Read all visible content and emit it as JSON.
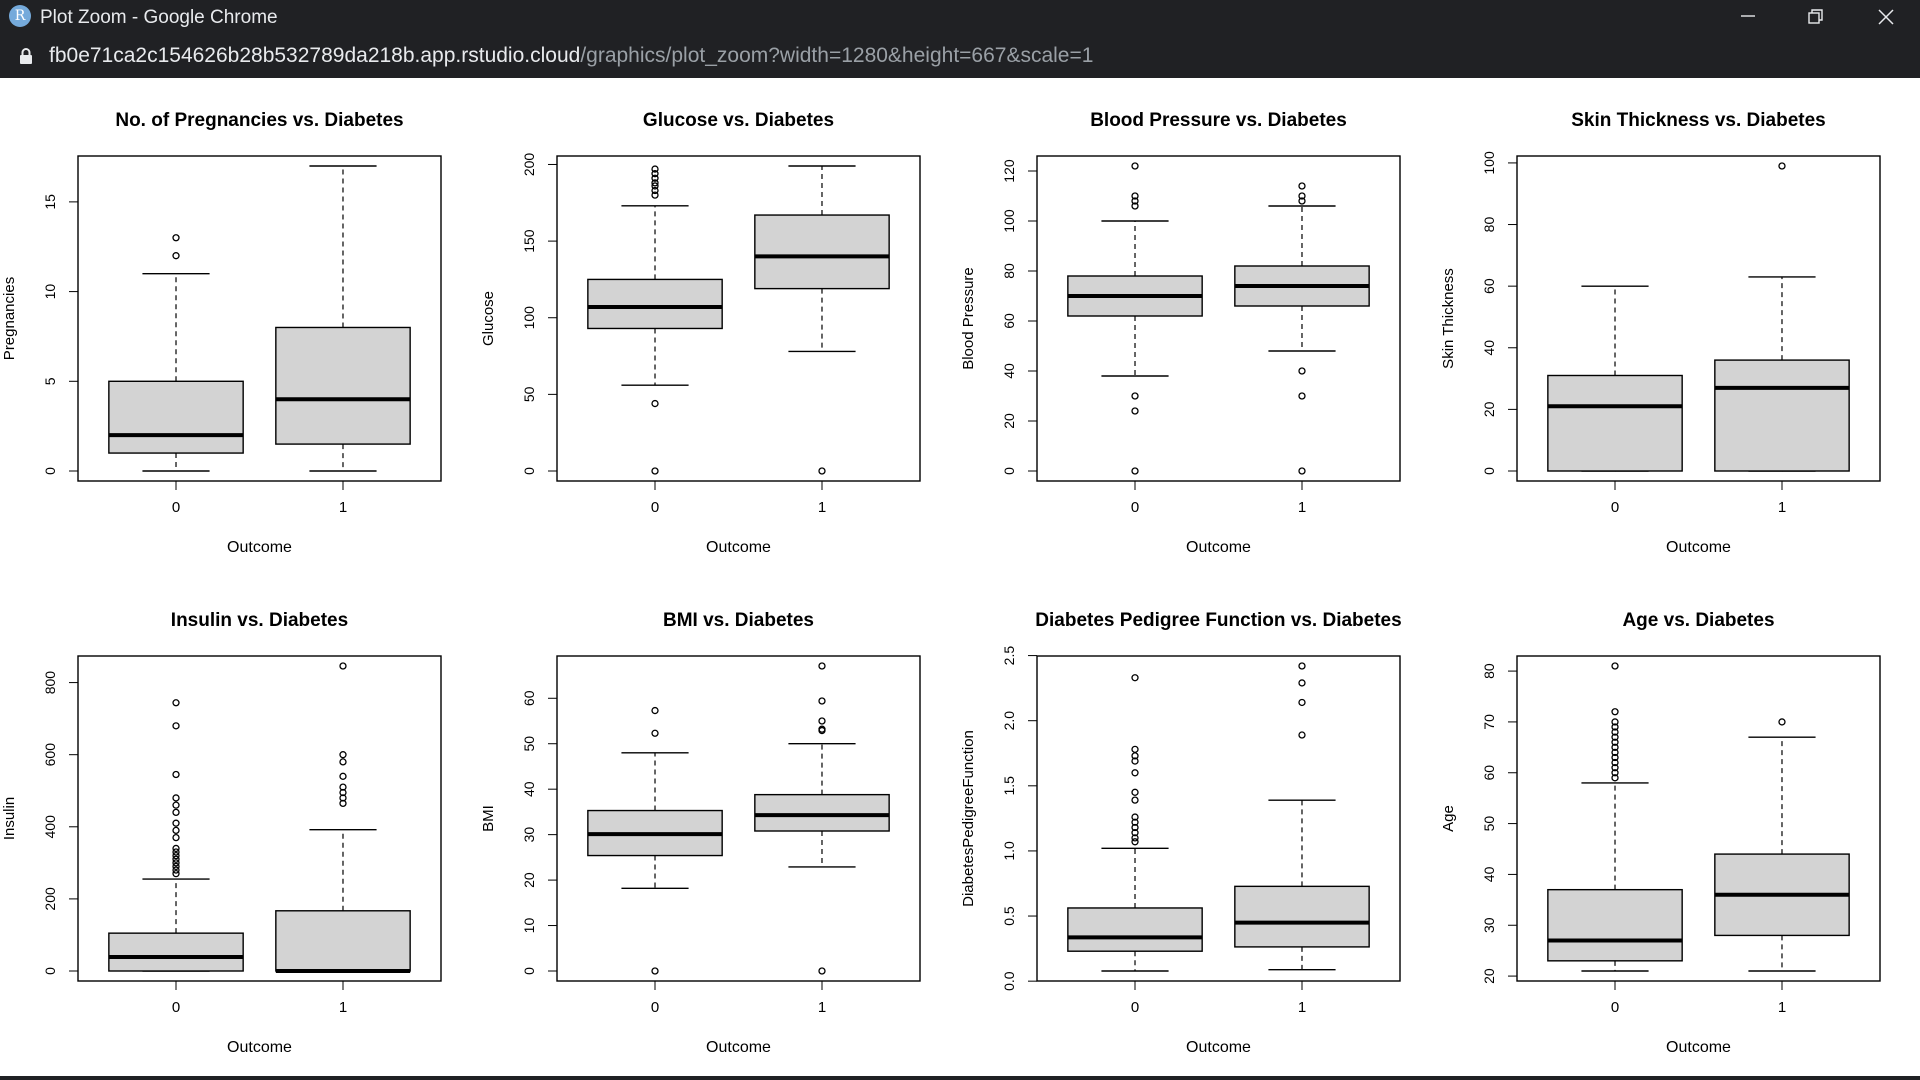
{
  "window": {
    "title": "Plot Zoom - Google Chrome",
    "app_icon_letter": "R",
    "url_host": "fb0e71ca2c154626b28b532789da218b.app.rstudio.cloud",
    "url_path": "/graphics/plot_zoom?width=1280&height=667&scale=1"
  },
  "colors": {
    "box_fill": "#d3d3d3",
    "stroke": "#000000",
    "chrome_bg": "#202124"
  },
  "chart_data": [
    {
      "type": "boxplot",
      "title": "No. of Pregnancies vs. Diabetes",
      "xlabel": "Outcome",
      "ylabel": "Pregnancies",
      "ylim": [
        0,
        17
      ],
      "yticks": [
        0,
        5,
        10,
        15
      ],
      "categories": [
        "0",
        "1"
      ],
      "boxes": [
        {
          "group": "0",
          "whisker_low": 0,
          "q1": 1,
          "median": 2,
          "q3": 5,
          "whisker_high": 11,
          "outliers": [
            12,
            13
          ]
        },
        {
          "group": "1",
          "whisker_low": 0,
          "q1": 1.5,
          "median": 4,
          "q3": 8,
          "whisker_high": 17,
          "outliers": []
        }
      ]
    },
    {
      "type": "boxplot",
      "title": "Glucose vs. Diabetes",
      "xlabel": "Outcome",
      "ylabel": "Glucose",
      "ylim": [
        0,
        199
      ],
      "yticks": [
        0,
        50,
        100,
        150,
        200
      ],
      "categories": [
        "0",
        "1"
      ],
      "boxes": [
        {
          "group": "0",
          "whisker_low": 56,
          "q1": 93,
          "median": 107,
          "q3": 125,
          "whisker_high": 173,
          "outliers": [
            0,
            44,
            180,
            183,
            186,
            188,
            191,
            194,
            197
          ]
        },
        {
          "group": "1",
          "whisker_low": 78,
          "q1": 119,
          "median": 140,
          "q3": 167,
          "whisker_high": 199,
          "outliers": [
            0
          ]
        }
      ]
    },
    {
      "type": "boxplot",
      "title": "Blood Pressure vs. Diabetes",
      "xlabel": "Outcome",
      "ylabel": "Blood Pressure",
      "ylim": [
        0,
        122
      ],
      "yticks": [
        0,
        20,
        40,
        60,
        80,
        100,
        120
      ],
      "categories": [
        "0",
        "1"
      ],
      "boxes": [
        {
          "group": "0",
          "whisker_low": 38,
          "q1": 62,
          "median": 70,
          "q3": 78,
          "whisker_high": 100,
          "outliers": [
            0,
            24,
            30,
            106,
            108,
            110,
            122
          ]
        },
        {
          "group": "1",
          "whisker_low": 48,
          "q1": 66,
          "median": 74,
          "q3": 82,
          "whisker_high": 106,
          "outliers": [
            0,
            30,
            40,
            108,
            110,
            114
          ]
        }
      ]
    },
    {
      "type": "boxplot",
      "title": "Skin Thickness vs. Diabetes",
      "xlabel": "Outcome",
      "ylabel": "Skin Thickness",
      "ylim": [
        0,
        99
      ],
      "yticks": [
        0,
        20,
        40,
        60,
        80,
        100
      ],
      "categories": [
        "0",
        "1"
      ],
      "boxes": [
        {
          "group": "0",
          "whisker_low": 0,
          "q1": 0,
          "median": 21,
          "q3": 31,
          "whisker_high": 60,
          "outliers": []
        },
        {
          "group": "1",
          "whisker_low": 0,
          "q1": 0,
          "median": 27,
          "q3": 36,
          "whisker_high": 63,
          "outliers": [
            99
          ]
        }
      ]
    },
    {
      "type": "boxplot",
      "title": "Insulin vs. Diabetes",
      "xlabel": "Outcome",
      "ylabel": "Insulin",
      "ylim": [
        0,
        846
      ],
      "yticks": [
        0,
        200,
        400,
        600,
        800
      ],
      "categories": [
        "0",
        "1"
      ],
      "boxes": [
        {
          "group": "0",
          "whisker_low": 0,
          "q1": 0,
          "median": 39,
          "q3": 105,
          "whisker_high": 255,
          "outliers": [
            270,
            280,
            290,
            300,
            310,
            320,
            330,
            340,
            370,
            390,
            410,
            440,
            460,
            480,
            545,
            680,
            744
          ]
        },
        {
          "group": "1",
          "whisker_low": 0,
          "q1": 0,
          "median": 0,
          "q3": 167,
          "whisker_high": 392,
          "outliers": [
            465,
            480,
            495,
            510,
            540,
            580,
            600,
            846
          ]
        }
      ]
    },
    {
      "type": "boxplot",
      "title": "BMI vs. Diabetes",
      "xlabel": "Outcome",
      "ylabel": "BMI",
      "ylim": [
        0,
        67.1
      ],
      "yticks": [
        0,
        10,
        20,
        30,
        40,
        50,
        60
      ],
      "categories": [
        "0",
        "1"
      ],
      "boxes": [
        {
          "group": "0",
          "whisker_low": 18.2,
          "q1": 25.4,
          "median": 30.1,
          "q3": 35.3,
          "whisker_high": 48.0,
          "outliers": [
            0,
            52.3,
            57.3
          ]
        },
        {
          "group": "1",
          "whisker_low": 22.9,
          "q1": 30.8,
          "median": 34.3,
          "q3": 38.8,
          "whisker_high": 50.0,
          "outliers": [
            0,
            52.9,
            53.2,
            55.0,
            59.4,
            67.1
          ]
        }
      ]
    },
    {
      "type": "boxplot",
      "title": "Diabetes Pedigree Function vs. Diabetes",
      "xlabel": "Outcome",
      "ylabel": "DiabetesPedigreeFunction",
      "ylim": [
        0.078,
        2.42
      ],
      "yticks": [
        0.0,
        0.5,
        1.0,
        1.5,
        2.0,
        2.5
      ],
      "ytick_labels": [
        "0.0",
        "0.5",
        "1.0",
        "1.5",
        "2.0",
        "2.5"
      ],
      "categories": [
        "0",
        "1"
      ],
      "boxes": [
        {
          "group": "0",
          "whisker_low": 0.078,
          "q1": 0.23,
          "median": 0.336,
          "q3": 0.562,
          "whisker_high": 1.02,
          "outliers": [
            1.07,
            1.1,
            1.14,
            1.18,
            1.22,
            1.26,
            1.39,
            1.45,
            1.6,
            1.69,
            1.73,
            1.78,
            2.33
          ]
        },
        {
          "group": "1",
          "whisker_low": 0.088,
          "q1": 0.263,
          "median": 0.449,
          "q3": 0.728,
          "whisker_high": 1.39,
          "outliers": [
            1.89,
            2.14,
            2.29,
            2.42
          ]
        }
      ]
    },
    {
      "type": "boxplot",
      "title": "Age vs. Diabetes",
      "xlabel": "Outcome",
      "ylabel": "Age",
      "ylim": [
        21,
        81
      ],
      "yticks": [
        20,
        30,
        40,
        50,
        60,
        70,
        80
      ],
      "categories": [
        "0",
        "1"
      ],
      "boxes": [
        {
          "group": "0",
          "whisker_low": 21,
          "q1": 23,
          "median": 27,
          "q3": 37,
          "whisker_high": 58,
          "outliers": [
            59,
            60,
            61,
            62,
            63,
            64,
            65,
            66,
            67,
            68,
            69,
            70,
            72,
            81
          ]
        },
        {
          "group": "1",
          "whisker_low": 21,
          "q1": 28,
          "median": 36,
          "q3": 44,
          "whisker_high": 67,
          "outliers": [
            70
          ]
        }
      ]
    }
  ]
}
